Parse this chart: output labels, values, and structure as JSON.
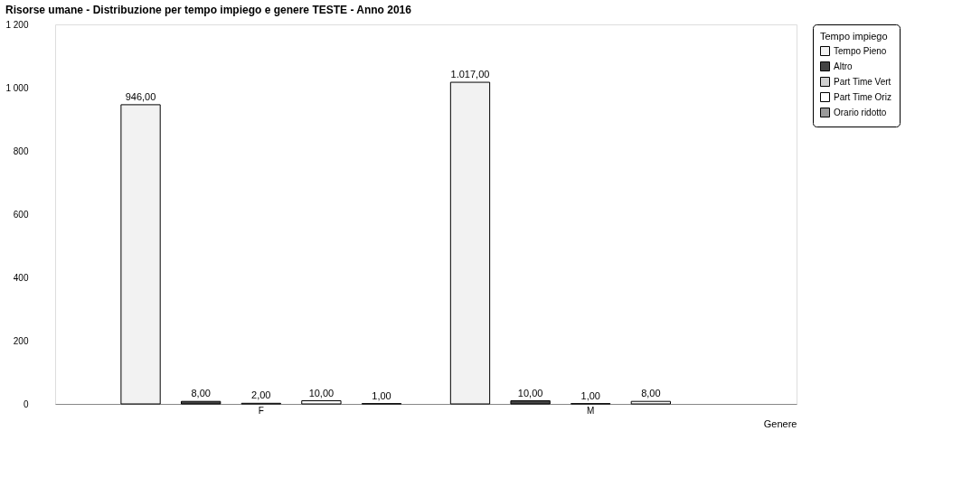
{
  "chart_data": {
    "type": "bar",
    "title": "Risorse umane - Distribuzione per tempo impiego e genere TESTE - Anno 2016",
    "xlabel": "Genere",
    "legend_title": "Tempo impiego",
    "categories": [
      "F",
      "M"
    ],
    "series": [
      {
        "name": "Tempo Pieno",
        "color": "#f2f2f2",
        "values": [
          946,
          1017
        ],
        "value_labels": [
          "946,00",
          "1.017,00"
        ]
      },
      {
        "name": "Altro",
        "color": "#444444",
        "values": [
          8,
          10
        ],
        "value_labels": [
          "8,00",
          "10,00"
        ]
      },
      {
        "name": "Part Time Vert",
        "color": "#d0d0d0",
        "values": [
          2,
          1
        ],
        "value_labels": [
          "2,00",
          "1,00"
        ]
      },
      {
        "name": "Part Time Oriz",
        "color": "#ffffff",
        "values": [
          10,
          8
        ],
        "value_labels": [
          "10,00",
          "8,00"
        ]
      },
      {
        "name": "Orario ridotto",
        "color": "#999999",
        "values": [
          1,
          null
        ],
        "value_labels": [
          "1,00",
          null
        ]
      }
    ],
    "ylim": [
      0,
      1200
    ],
    "yticks": [
      0,
      200,
      400,
      600,
      800,
      {
        "value": 1000,
        "label": "1 000"
      },
      {
        "value": 1200,
        "label": "1 200"
      }
    ],
    "grid": false,
    "legend": "right"
  }
}
